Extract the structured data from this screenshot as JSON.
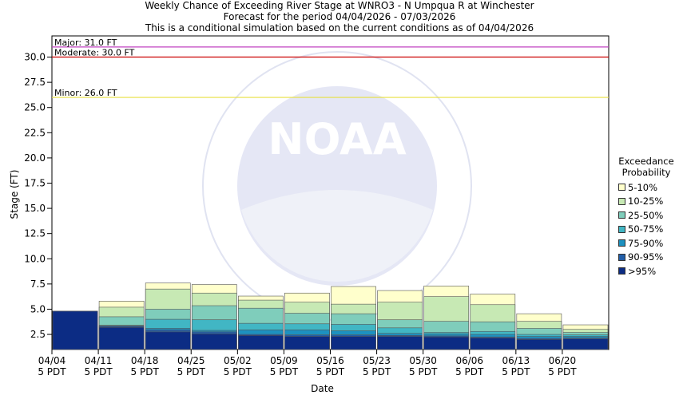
{
  "header": {
    "title": "Weekly Chance of Exceeding River Stage at WNRO3 - N Umpqua R at Winchester",
    "subtitle": "Forecast for the period 04/04/2026 - 07/03/2026",
    "note": "This is a conditional simulation based on the current conditions as of 04/04/2026"
  },
  "chart_data": {
    "type": "bar",
    "stacked": true,
    "xlabel": "Date",
    "ylabel": "Stage (FT)",
    "ylim": [
      1.0,
      32.1
    ],
    "yticks": [
      2.5,
      5.0,
      7.5,
      10.0,
      12.5,
      15.0,
      17.5,
      20.0,
      22.5,
      25.0,
      27.5,
      30.0
    ],
    "ytick_labels": [
      "2.5",
      "5.0",
      "7.5",
      "10.0",
      "12.5",
      "15.0",
      "17.5",
      "20.0",
      "22.5",
      "25.0",
      "27.5",
      "30.0"
    ],
    "x_ticks": [
      {
        "date": "04/04",
        "tz": "5 PDT"
      },
      {
        "date": "04/11",
        "tz": "5 PDT"
      },
      {
        "date": "04/18",
        "tz": "5 PDT"
      },
      {
        "date": "04/25",
        "tz": "5 PDT"
      },
      {
        "date": "05/02",
        "tz": "5 PDT"
      },
      {
        "date": "05/09",
        "tz": "5 PDT"
      },
      {
        "date": "05/16",
        "tz": "5 PDT"
      },
      {
        "date": "05/23",
        "tz": "5 PDT"
      },
      {
        "date": "05/30",
        "tz": "5 PDT"
      },
      {
        "date": "06/06",
        "tz": "5 PDT"
      },
      {
        "date": "06/13",
        "tz": "5 PDT"
      },
      {
        "date": "06/20",
        "tz": "5 PDT"
      }
    ],
    "thresholds": [
      {
        "label": "Major: 31.0 FT",
        "value": 31.0,
        "color": "#c040c0"
      },
      {
        "label": "Moderate: 30.0 FT",
        "value": 30.0,
        "color": "#cc0000"
      },
      {
        "label": "Minor: 26.0 FT",
        "value": 26.0,
        "color": "#e8e040"
      }
    ],
    "legend": {
      "title_line1": "Exceedance",
      "title_line2": "Probability",
      "placement": "right"
    },
    "series": [
      {
        "name": ">95%",
        "color": "#0c2c84"
      },
      {
        "name": "90-95%",
        "color": "#225ea8"
      },
      {
        "name": "75-90%",
        "color": "#1d91c0"
      },
      {
        "name": "50-75%",
        "color": "#41b6c4"
      },
      {
        "name": "25-50%",
        "color": "#7fcdbb"
      },
      {
        "name": "10-25%",
        "color": "#c7e9b4"
      },
      {
        "name": "5-10%",
        "color": "#ffffcc"
      }
    ],
    "weeks": [
      {
        "week": "04/04",
        "stack": [
          4.8,
          4.8,
          4.8,
          4.8,
          4.8,
          4.8,
          4.8
        ]
      },
      {
        "week": "04/11",
        "stack": [
          3.2,
          3.3,
          3.35,
          3.4,
          4.25,
          5.2,
          5.8
        ]
      },
      {
        "week": "04/18",
        "stack": [
          2.75,
          2.95,
          3.1,
          4.0,
          5.0,
          7.0,
          7.6
        ]
      },
      {
        "week": "04/25",
        "stack": [
          2.55,
          2.75,
          2.9,
          3.95,
          5.35,
          6.6,
          7.45
        ]
      },
      {
        "week": "05/02",
        "stack": [
          2.4,
          2.5,
          2.95,
          3.6,
          5.1,
          5.9,
          6.3
        ]
      },
      {
        "week": "05/09",
        "stack": [
          2.3,
          2.45,
          2.95,
          3.55,
          4.6,
          5.7,
          6.6
        ]
      },
      {
        "week": "05/16",
        "stack": [
          2.3,
          2.45,
          2.85,
          3.5,
          4.55,
          5.5,
          7.25
        ]
      },
      {
        "week": "05/23",
        "stack": [
          2.3,
          2.4,
          2.6,
          3.15,
          3.95,
          5.7,
          6.85
        ]
      },
      {
        "week": "05/30",
        "stack": [
          2.25,
          2.35,
          2.55,
          2.7,
          3.8,
          6.25,
          7.3
        ]
      },
      {
        "week": "06/06",
        "stack": [
          2.15,
          2.25,
          2.5,
          2.8,
          3.75,
          5.45,
          6.5
        ]
      },
      {
        "week": "06/13",
        "stack": [
          2.0,
          2.1,
          2.3,
          2.5,
          3.1,
          3.8,
          4.55
        ]
      },
      {
        "week": "06/20",
        "stack": [
          2.05,
          2.15,
          2.3,
          2.45,
          2.7,
          3.0,
          3.45
        ]
      }
    ]
  }
}
